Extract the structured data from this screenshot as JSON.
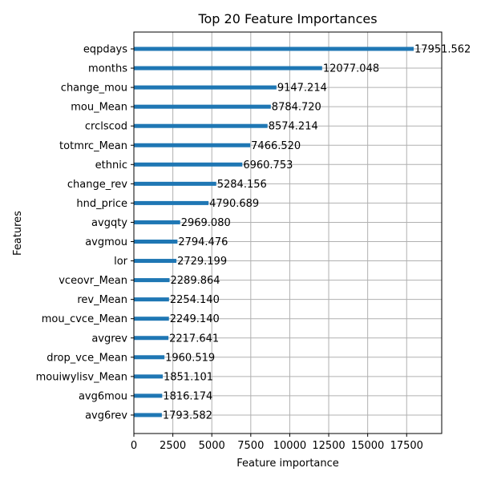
{
  "chart_data": {
    "type": "bar",
    "orientation": "horizontal",
    "title": "Top 20 Feature Importances",
    "xlabel": "Feature importance",
    "ylabel": "Features",
    "xlim": [
      0,
      19750
    ],
    "xticks": [
      0,
      2500,
      5000,
      7500,
      10000,
      12500,
      15000,
      17500
    ],
    "grid": true,
    "bar_color": "#1f77b4",
    "categories": [
      "eqpdays",
      "months",
      "change_mou",
      "mou_Mean",
      "crclscod",
      "totmrc_Mean",
      "ethnic",
      "change_rev",
      "hnd_price",
      "avgqty",
      "avgmou",
      "lor",
      "vceovr_Mean",
      "rev_Mean",
      "mou_cvce_Mean",
      "avgrev",
      "drop_vce_Mean",
      "mouiwylisv_Mean",
      "avg6mou",
      "avg6rev"
    ],
    "values": [
      17951.562,
      12077.048,
      9147.214,
      8784.72,
      8574.214,
      7466.52,
      6960.753,
      5284.156,
      4790.689,
      2969.08,
      2794.476,
      2729.199,
      2289.864,
      2254.14,
      2249.14,
      2217.641,
      1960.519,
      1851.101,
      1816.174,
      1793.582
    ],
    "value_labels": [
      "17951.562",
      "12077.048",
      "9147.214",
      "8784.720",
      "8574.214",
      "7466.520",
      "6960.753",
      "5284.156",
      "4790.689",
      "2969.080",
      "2794.476",
      "2729.199",
      "2289.864",
      "2254.140",
      "2249.140",
      "2217.641",
      "1960.519",
      "1851.101",
      "1816.174",
      "1793.582"
    ]
  }
}
